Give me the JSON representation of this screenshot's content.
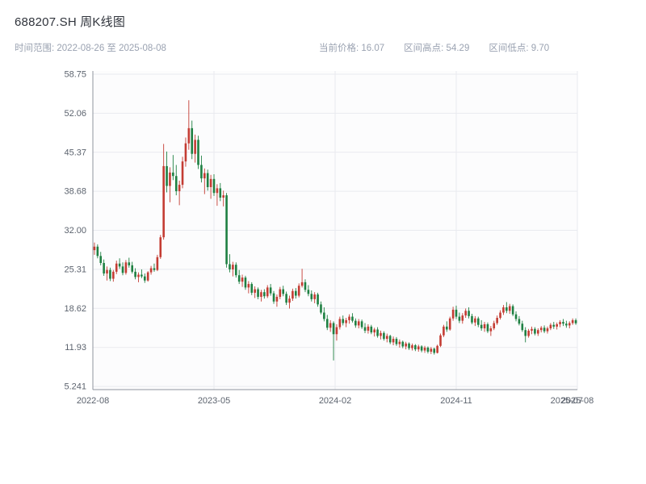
{
  "header": {
    "title": "688207.SH 周K线图",
    "time_range_label": "时间范围: 2022-08-26 至 2025-08-08",
    "stats": {
      "current": "当前价格: 16.07",
      "high": "区间高点: 54.29",
      "low": "区间低点: 9.70"
    }
  },
  "chart_data": {
    "type": "candlestick",
    "title": "688207.SH 周K线图",
    "frequency": "weekly",
    "x_start": "2022-08-26",
    "x_end": "2025-08-08",
    "current_price": 16.07,
    "range_high": 54.29,
    "range_low": 9.7,
    "ylim": [
      4.7,
      59.3
    ],
    "yticks": [
      58.75,
      52.06,
      45.37,
      38.68,
      32.0,
      25.31,
      18.62,
      11.93,
      5.241
    ],
    "ytick_labels": [
      "58.75",
      "52.06",
      "45.37",
      "38.68",
      "32.00",
      "25.31",
      "18.62",
      "11.93",
      "5.241"
    ],
    "xticks": [
      {
        "label": "2022-08",
        "pos": 0.0,
        "grid": true
      },
      {
        "label": "2023-05",
        "pos": 0.25,
        "grid": true
      },
      {
        "label": "2024-02",
        "pos": 0.5,
        "grid": true
      },
      {
        "label": "2024-11",
        "pos": 0.75,
        "grid": true
      },
      {
        "label": "2025-07",
        "pos": 0.978,
        "grid": false
      },
      {
        "label": "2025-08",
        "pos": 1.0,
        "grid": true
      }
    ],
    "colors": {
      "up": "#c43c33",
      "down": "#1e8042",
      "grid": "#e9eaef",
      "axis": "#8f949e",
      "tick_text": "#5c636e",
      "plot_bg": "#fcfcfd"
    },
    "ohlc": [
      [
        28.6,
        29.9,
        27.8,
        29.2
      ],
      [
        29.2,
        29.6,
        27.2,
        27.6
      ],
      [
        27.6,
        28.3,
        26.0,
        26.4
      ],
      [
        26.4,
        27.0,
        24.2,
        24.6
      ],
      [
        24.6,
        25.8,
        23.4,
        25.2
      ],
      [
        25.2,
        25.6,
        23.3,
        23.7
      ],
      [
        23.7,
        25.2,
        23.2,
        24.9
      ],
      [
        24.9,
        26.8,
        24.5,
        26.3
      ],
      [
        26.3,
        27.2,
        25.4,
        25.8
      ],
      [
        25.8,
        26.5,
        24.3,
        24.7
      ],
      [
        24.7,
        26.9,
        24.4,
        26.5
      ],
      [
        26.5,
        27.3,
        25.6,
        26.0
      ],
      [
        26.0,
        26.6,
        24.6,
        24.9
      ],
      [
        24.9,
        25.5,
        23.6,
        24.0
      ],
      [
        24.0,
        24.8,
        23.1,
        24.4
      ],
      [
        24.4,
        25.3,
        23.8,
        24.1
      ],
      [
        24.1,
        24.6,
        23.0,
        23.4
      ],
      [
        23.4,
        25.0,
        23.2,
        24.8
      ],
      [
        24.8,
        25.9,
        24.4,
        25.5
      ],
      [
        25.5,
        26.3,
        24.9,
        25.2
      ],
      [
        25.2,
        27.8,
        25.0,
        27.4
      ],
      [
        27.4,
        31.2,
        27.1,
        30.8
      ],
      [
        30.8,
        46.8,
        30.4,
        43.0
      ],
      [
        43.0,
        45.5,
        38.5,
        39.6
      ],
      [
        39.6,
        42.8,
        36.8,
        41.9
      ],
      [
        41.9,
        44.9,
        40.6,
        41.3
      ],
      [
        41.3,
        43.2,
        38.0,
        38.7
      ],
      [
        38.7,
        40.5,
        36.3,
        39.8
      ],
      [
        39.8,
        44.6,
        39.2,
        43.8
      ],
      [
        43.8,
        47.9,
        42.9,
        46.9
      ],
      [
        46.9,
        54.29,
        45.8,
        49.5
      ],
      [
        49.5,
        50.8,
        44.2,
        45.1
      ],
      [
        45.1,
        48.4,
        43.6,
        47.5
      ],
      [
        47.5,
        48.2,
        42.5,
        43.2
      ],
      [
        43.2,
        44.8,
        40.2,
        40.9
      ],
      [
        40.9,
        42.6,
        38.2,
        41.8
      ],
      [
        41.8,
        42.4,
        38.8,
        39.4
      ],
      [
        39.4,
        41.5,
        37.4,
        40.8
      ],
      [
        40.8,
        41.6,
        37.9,
        38.4
      ],
      [
        38.4,
        39.9,
        36.2,
        39.2
      ],
      [
        39.2,
        40.1,
        37.0,
        37.6
      ],
      [
        37.6,
        38.8,
        36.1,
        38.0
      ],
      [
        38.0,
        38.4,
        25.6,
        26.2
      ],
      [
        26.2,
        27.9,
        24.8,
        25.3
      ],
      [
        25.3,
        26.6,
        24.1,
        26.1
      ],
      [
        26.1,
        26.5,
        23.9,
        24.3
      ],
      [
        24.3,
        25.2,
        22.8,
        23.2
      ],
      [
        23.2,
        24.4,
        22.3,
        23.9
      ],
      [
        23.9,
        24.2,
        21.8,
        22.2
      ],
      [
        22.2,
        23.3,
        21.2,
        22.8
      ],
      [
        22.8,
        23.1,
        20.9,
        21.3
      ],
      [
        21.3,
        22.4,
        20.4,
        21.9
      ],
      [
        21.9,
        22.2,
        20.2,
        20.6
      ],
      [
        20.6,
        21.8,
        19.8,
        21.4
      ],
      [
        21.4,
        21.9,
        20.3,
        20.7
      ],
      [
        20.7,
        22.6,
        20.4,
        22.2
      ],
      [
        22.2,
        22.8,
        20.8,
        21.2
      ],
      [
        21.2,
        21.6,
        19.4,
        19.8
      ],
      [
        19.8,
        21.0,
        18.9,
        20.6
      ],
      [
        20.6,
        22.3,
        20.2,
        21.9
      ],
      [
        21.9,
        22.5,
        20.7,
        21.1
      ],
      [
        21.1,
        21.5,
        19.2,
        19.6
      ],
      [
        19.6,
        20.8,
        18.6,
        20.3
      ],
      [
        20.3,
        22.0,
        19.9,
        21.6
      ],
      [
        21.6,
        22.1,
        20.3,
        20.8
      ],
      [
        20.8,
        22.9,
        20.5,
        22.5
      ],
      [
        22.5,
        25.4,
        22.2,
        23.1
      ],
      [
        23.1,
        23.6,
        21.4,
        21.8
      ],
      [
        21.8,
        22.6,
        20.7,
        21.1
      ],
      [
        21.1,
        21.7,
        19.8,
        20.2
      ],
      [
        20.2,
        21.4,
        19.5,
        21.0
      ],
      [
        21.0,
        21.3,
        18.9,
        19.3
      ],
      [
        19.3,
        19.8,
        17.6,
        17.9
      ],
      [
        17.9,
        18.8,
        16.4,
        16.8
      ],
      [
        16.8,
        17.5,
        14.9,
        15.3
      ],
      [
        15.3,
        16.6,
        14.6,
        16.1
      ],
      [
        16.1,
        16.4,
        9.7,
        14.2
      ],
      [
        14.2,
        15.9,
        13.1,
        15.4
      ],
      [
        15.4,
        17.2,
        15.0,
        16.8
      ],
      [
        16.8,
        17.4,
        15.7,
        16.1
      ],
      [
        16.1,
        17.0,
        15.4,
        16.6
      ],
      [
        16.6,
        17.6,
        16.0,
        17.2
      ],
      [
        17.2,
        17.8,
        16.2,
        16.5
      ],
      [
        16.5,
        16.9,
        15.3,
        15.7
      ],
      [
        15.7,
        16.8,
        15.2,
        16.4
      ],
      [
        16.4,
        16.7,
        15.1,
        15.4
      ],
      [
        15.4,
        16.1,
        14.4,
        14.8
      ],
      [
        14.8,
        15.9,
        14.3,
        15.5
      ],
      [
        15.5,
        15.8,
        14.2,
        14.5
      ],
      [
        14.5,
        15.3,
        13.8,
        15.0
      ],
      [
        15.0,
        15.4,
        13.6,
        13.9
      ],
      [
        13.9,
        14.8,
        13.3,
        14.4
      ],
      [
        14.4,
        14.7,
        13.1,
        13.4
      ],
      [
        13.4,
        14.3,
        12.8,
        13.9
      ],
      [
        13.9,
        14.1,
        12.5,
        12.8
      ],
      [
        12.8,
        13.8,
        12.3,
        13.4
      ],
      [
        13.4,
        13.7,
        12.2,
        12.5
      ],
      [
        12.5,
        13.3,
        11.9,
        12.9
      ],
      [
        12.9,
        13.1,
        11.8,
        12.1
      ],
      [
        12.1,
        12.9,
        11.6,
        12.6
      ],
      [
        12.6,
        12.8,
        11.5,
        11.8
      ],
      [
        11.8,
        12.6,
        11.4,
        12.3
      ],
      [
        12.3,
        12.5,
        11.3,
        11.6
      ],
      [
        11.6,
        12.4,
        11.2,
        12.1
      ],
      [
        12.1,
        12.3,
        11.1,
        11.4
      ],
      [
        11.4,
        12.2,
        11.0,
        11.9
      ],
      [
        11.9,
        12.1,
        10.9,
        11.2
      ],
      [
        11.2,
        12.0,
        10.8,
        11.7
      ],
      [
        11.7,
        11.9,
        10.7,
        11.0
      ],
      [
        11.0,
        12.4,
        10.9,
        12.2
      ],
      [
        12.2,
        14.3,
        12.0,
        14.0
      ],
      [
        14.0,
        15.8,
        13.7,
        15.5
      ],
      [
        15.5,
        16.4,
        14.6,
        15.0
      ],
      [
        15.0,
        17.2,
        14.8,
        16.9
      ],
      [
        16.9,
        18.9,
        16.5,
        18.4
      ],
      [
        18.4,
        19.1,
        16.8,
        17.2
      ],
      [
        17.2,
        17.9,
        16.1,
        16.5
      ],
      [
        16.5,
        17.8,
        16.0,
        17.4
      ],
      [
        17.4,
        18.6,
        17.0,
        18.2
      ],
      [
        18.2,
        18.8,
        16.9,
        17.3
      ],
      [
        17.3,
        17.7,
        15.9,
        16.2
      ],
      [
        16.2,
        17.3,
        15.6,
        16.9
      ],
      [
        16.9,
        17.2,
        15.4,
        15.8
      ],
      [
        15.8,
        16.6,
        14.8,
        15.2
      ],
      [
        15.2,
        16.3,
        14.6,
        15.9
      ],
      [
        15.9,
        16.2,
        14.4,
        14.7
      ],
      [
        14.7,
        15.6,
        13.9,
        15.2
      ],
      [
        15.2,
        16.5,
        14.9,
        16.1
      ],
      [
        16.1,
        17.4,
        15.8,
        17.0
      ],
      [
        17.0,
        18.3,
        16.7,
        17.9
      ],
      [
        17.9,
        19.2,
        17.5,
        18.8
      ],
      [
        18.8,
        19.7,
        17.8,
        18.2
      ],
      [
        18.2,
        19.4,
        17.7,
        19.0
      ],
      [
        19.0,
        19.3,
        17.3,
        17.6
      ],
      [
        17.6,
        18.1,
        16.4,
        16.8
      ],
      [
        16.8,
        17.3,
        15.7,
        16.0
      ],
      [
        16.0,
        16.5,
        14.6,
        14.9
      ],
      [
        14.9,
        15.4,
        12.8,
        13.9
      ],
      [
        13.9,
        15.1,
        13.6,
        14.8
      ],
      [
        14.8,
        15.5,
        14.2,
        15.1
      ],
      [
        15.1,
        15.4,
        14.0,
        14.3
      ],
      [
        14.3,
        15.2,
        13.9,
        14.9
      ],
      [
        14.9,
        15.6,
        14.5,
        15.3
      ],
      [
        15.3,
        15.7,
        14.4,
        14.7
      ],
      [
        14.7,
        15.5,
        14.3,
        15.2
      ],
      [
        15.2,
        16.1,
        14.9,
        15.8
      ],
      [
        15.8,
        16.3,
        15.1,
        15.5
      ],
      [
        15.5,
        16.2,
        15.0,
        15.9
      ],
      [
        15.9,
        16.6,
        15.4,
        16.3
      ],
      [
        16.3,
        16.8,
        15.6,
        16.0
      ],
      [
        16.0,
        16.5,
        15.3,
        15.7
      ],
      [
        15.7,
        16.4,
        15.2,
        16.1
      ],
      [
        16.1,
        16.9,
        15.8,
        16.6
      ],
      [
        16.6,
        16.9,
        15.8,
        16.07
      ]
    ]
  }
}
